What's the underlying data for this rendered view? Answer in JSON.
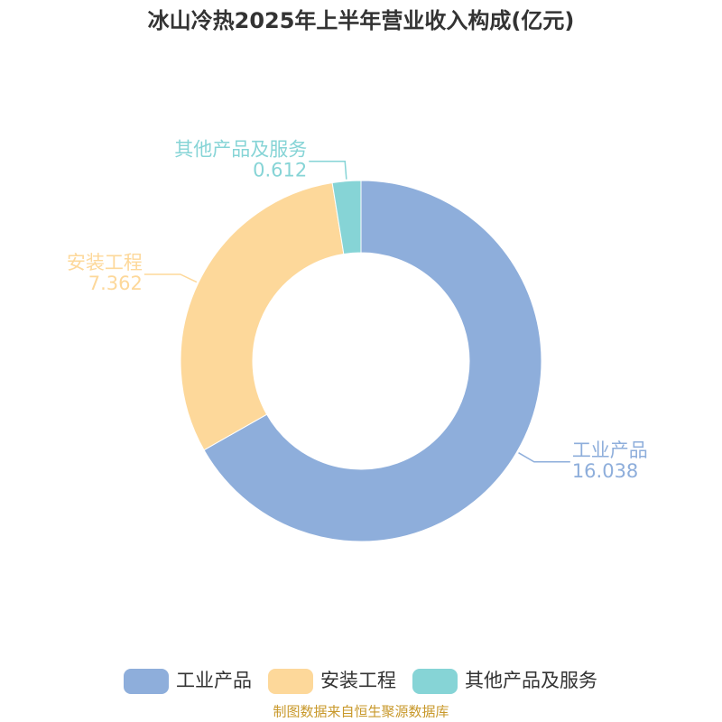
{
  "chart_data": {
    "type": "donut",
    "title": "冰山冷热2025年上半年营业收入构成(亿元)",
    "categories": [
      "工业产品",
      "安装工程",
      "其他产品及服务"
    ],
    "values": [
      16.038,
      7.362,
      0.612
    ],
    "colors": [
      "#8eaedb",
      "#fdd89a",
      "#86d4d6"
    ],
    "legend": "bottom",
    "source": "制图数据来自恒生聚源数据库"
  }
}
